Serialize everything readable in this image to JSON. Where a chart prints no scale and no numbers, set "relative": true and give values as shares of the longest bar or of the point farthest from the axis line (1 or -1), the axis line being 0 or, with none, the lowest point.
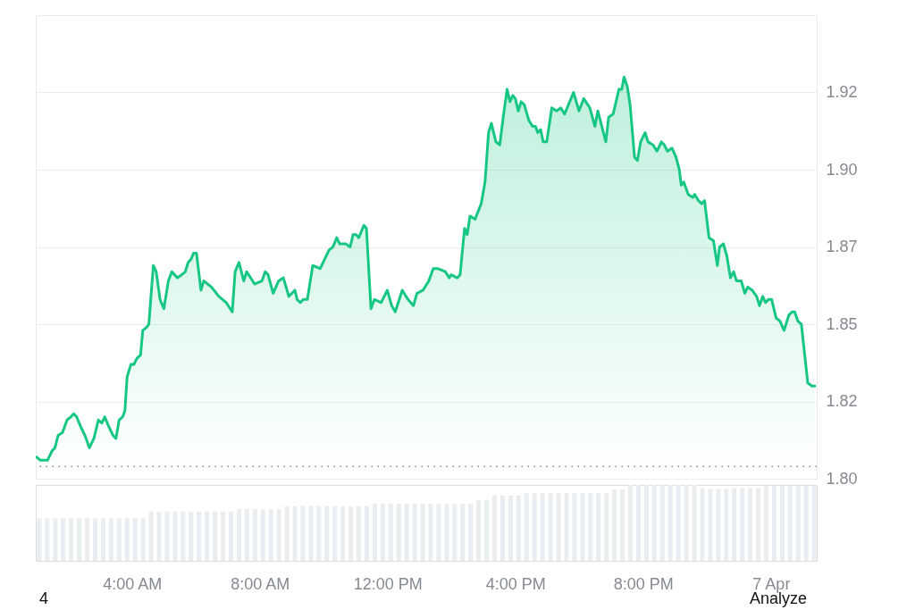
{
  "chart_data": [
    {
      "type": "area",
      "xlim": [
        0.99,
        25.43
      ],
      "ylim": [
        1.8,
        1.95
      ],
      "yticks": [
        {
          "value": 1.8,
          "label": "1.80"
        },
        {
          "value": 1.825,
          "label": "1.82"
        },
        {
          "value": 1.85,
          "label": "1.85"
        },
        {
          "value": 1.875,
          "label": "1.87"
        },
        {
          "value": 1.9,
          "label": "1.90"
        },
        {
          "value": 1.925,
          "label": "1.92"
        }
      ],
      "grid": "y",
      "tick_labels": "y",
      "ref_lines": [
        {
          "axis": "y",
          "value": 1.804,
          "color": "#8c8c8c",
          "line_style": "dotted"
        }
      ],
      "series": [
        {
          "color": "#16c784",
          "x": [
            1.02,
            1.13,
            1.27,
            1.36,
            1.5,
            1.59,
            1.69,
            1.83,
            1.97,
            2.09,
            2.18,
            2.27,
            2.39,
            2.53,
            2.67,
            2.81,
            2.95,
            3.06,
            3.15,
            3.27,
            3.41,
            3.5,
            3.6,
            3.71,
            3.78,
            3.85,
            3.97,
            4.06,
            4.16,
            4.27,
            4.34,
            4.46,
            4.53,
            4.67,
            4.76,
            4.88,
            5.0,
            5.14,
            5.25,
            5.42,
            5.56,
            5.67,
            5.76,
            5.85,
            5.93,
            6.02,
            6.16,
            6.25,
            6.49,
            6.72,
            6.95,
            7.14,
            7.23,
            7.35,
            7.5,
            7.59,
            7.84,
            8.07,
            8.17,
            8.26,
            8.42,
            8.59,
            8.74,
            8.91,
            9.1,
            9.17,
            9.27,
            9.36,
            9.49,
            9.66,
            9.89,
            10.03,
            10.17,
            10.29,
            10.41,
            10.5,
            10.69,
            10.83,
            10.92,
            11.01,
            11.1,
            11.26,
            11.34,
            11.48,
            11.59,
            11.8,
            11.99,
            12.13,
            12.24,
            12.46,
            12.64,
            12.81,
            12.92,
            13.11,
            13.29,
            13.43,
            13.57,
            13.81,
            13.93,
            13.99,
            14.18,
            14.27,
            14.41,
            14.49,
            14.58,
            14.74,
            14.93,
            15.05,
            15.16,
            15.25,
            15.39,
            15.51,
            15.62,
            15.74,
            15.83,
            15.92,
            16.0,
            16.09,
            16.18,
            16.28,
            16.42,
            16.54,
            16.63,
            16.7,
            16.79,
            16.87,
            16.98,
            17.14,
            17.29,
            17.42,
            17.54,
            17.82,
            17.99,
            18.14,
            18.33,
            18.49,
            18.58,
            18.83,
            18.92,
            19.06,
            19.24,
            19.33,
            19.4,
            19.5,
            19.59,
            19.73,
            19.82,
            19.92,
            20.06,
            20.15,
            20.31,
            20.43,
            20.57,
            20.66,
            20.76,
            20.9,
            21.03,
            21.13,
            21.19,
            21.27,
            21.41,
            21.55,
            21.61,
            21.73,
            21.83,
            21.92,
            22.06,
            22.2,
            22.32,
            22.39,
            22.51,
            22.62,
            22.73,
            22.83,
            22.92,
            23.07,
            23.18,
            23.27,
            23.41,
            23.55,
            23.64,
            23.74,
            23.83,
            23.92,
            24.02,
            24.16,
            24.28,
            24.41,
            24.56,
            24.67,
            24.74,
            24.84,
            24.95,
            25.15,
            25.28,
            25.37
          ],
          "values": [
            1.807,
            1.806,
            1.806,
            1.806,
            1.809,
            1.81,
            1.814,
            1.815,
            1.819,
            1.82,
            1.821,
            1.82,
            1.817,
            1.814,
            1.81,
            1.813,
            1.819,
            1.818,
            1.82,
            1.817,
            1.814,
            1.813,
            1.819,
            1.82,
            1.822,
            1.833,
            1.837,
            1.837,
            1.839,
            1.84,
            1.848,
            1.849,
            1.85,
            1.869,
            1.867,
            1.858,
            1.855,
            1.864,
            1.867,
            1.865,
            1.866,
            1.867,
            1.87,
            1.871,
            1.873,
            1.873,
            1.861,
            1.864,
            1.862,
            1.859,
            1.857,
            1.854,
            1.867,
            1.87,
            1.864,
            1.867,
            1.863,
            1.864,
            1.867,
            1.866,
            1.86,
            1.864,
            1.865,
            1.859,
            1.861,
            1.858,
            1.857,
            1.858,
            1.858,
            1.869,
            1.868,
            1.871,
            1.874,
            1.875,
            1.878,
            1.876,
            1.876,
            1.875,
            1.879,
            1.879,
            1.878,
            1.882,
            1.881,
            1.855,
            1.858,
            1.857,
            1.861,
            1.856,
            1.854,
            1.861,
            1.858,
            1.856,
            1.86,
            1.861,
            1.864,
            1.868,
            1.868,
            1.867,
            1.865,
            1.866,
            1.865,
            1.866,
            1.881,
            1.879,
            1.885,
            1.884,
            1.889,
            1.896,
            1.912,
            1.915,
            1.909,
            1.908,
            1.917,
            1.926,
            1.922,
            1.924,
            1.923,
            1.919,
            1.922,
            1.921,
            1.916,
            1.914,
            1.914,
            1.912,
            1.913,
            1.909,
            1.909,
            1.92,
            1.919,
            1.92,
            1.918,
            1.925,
            1.919,
            1.923,
            1.92,
            1.914,
            1.919,
            1.909,
            1.917,
            1.918,
            1.926,
            1.926,
            1.93,
            1.927,
            1.921,
            1.904,
            1.903,
            1.909,
            1.912,
            1.909,
            1.908,
            1.906,
            1.909,
            1.908,
            1.906,
            1.907,
            1.904,
            1.9,
            1.895,
            1.896,
            1.892,
            1.891,
            1.892,
            1.89,
            1.889,
            1.89,
            1.878,
            1.877,
            1.869,
            1.875,
            1.876,
            1.872,
            1.865,
            1.867,
            1.864,
            1.864,
            1.86,
            1.862,
            1.861,
            1.859,
            1.856,
            1.859,
            1.857,
            1.858,
            1.858,
            1.852,
            1.851,
            1.848,
            1.853,
            1.854,
            1.854,
            1.851,
            1.85,
            1.831,
            1.83,
            1.83
          ]
        }
      ]
    },
    {
      "type": "bar",
      "relative": true,
      "xlim": [
        0.99,
        25.43
      ],
      "xticks": [
        {
          "value": 4,
          "label": "4:00 AM"
        },
        {
          "value": 8,
          "label": "8:00 AM"
        },
        {
          "value": 12,
          "label": "12:00 PM"
        },
        {
          "value": 16,
          "label": "4:00 PM"
        },
        {
          "value": 20,
          "label": "8:00 PM"
        },
        {
          "value": 24,
          "label": "7 Apr"
        }
      ],
      "tick_labels": "x",
      "x": [
        1.1,
        1.35,
        1.6,
        1.85,
        2.1,
        2.35,
        2.6,
        2.85,
        3.1,
        3.35,
        3.6,
        3.85,
        4.1,
        4.35,
        4.6,
        4.85,
        5.1,
        5.35,
        5.6,
        5.85,
        6.1,
        6.35,
        6.6,
        6.85,
        7.1,
        7.35,
        7.6,
        7.85,
        8.1,
        8.35,
        8.6,
        8.85,
        9.1,
        9.35,
        9.6,
        9.85,
        10.1,
        10.35,
        10.6,
        10.85,
        11.1,
        11.35,
        11.6,
        11.85,
        12.1,
        12.35,
        12.6,
        12.85,
        13.1,
        13.35,
        13.6,
        13.85,
        14.1,
        14.35,
        14.6,
        14.85,
        15.1,
        15.35,
        15.6,
        15.85,
        16.1,
        16.35,
        16.6,
        16.85,
        17.1,
        17.35,
        17.6,
        17.85,
        18.1,
        18.35,
        18.6,
        18.85,
        19.1,
        19.35,
        19.6,
        19.85,
        20.1,
        20.35,
        20.6,
        20.85,
        21.1,
        21.35,
        21.6,
        21.85,
        22.1,
        22.35,
        22.6,
        22.85,
        23.1,
        23.35,
        23.6,
        23.85,
        24.1,
        24.35,
        24.6,
        24.85,
        25.1,
        25.35
      ],
      "series": [
        {
          "color": "#e9edf0",
          "values": [
            0.56,
            0.56,
            0.56,
            0.56,
            0.56,
            0.56,
            0.56,
            0.56,
            0.56,
            0.56,
            0.56,
            0.56,
            0.56,
            0.56,
            0.65,
            0.65,
            0.65,
            0.65,
            0.65,
            0.65,
            0.65,
            0.65,
            0.65,
            0.65,
            0.65,
            0.68,
            0.68,
            0.68,
            0.68,
            0.68,
            0.68,
            0.72,
            0.72,
            0.72,
            0.72,
            0.72,
            0.72,
            0.72,
            0.72,
            0.72,
            0.72,
            0.72,
            0.75,
            0.75,
            0.75,
            0.75,
            0.75,
            0.75,
            0.75,
            0.75,
            0.75,
            0.75,
            0.75,
            0.75,
            0.75,
            0.8,
            0.8,
            0.86,
            0.86,
            0.86,
            0.86,
            0.89,
            0.89,
            0.89,
            0.89,
            0.89,
            0.89,
            0.89,
            0.89,
            0.89,
            0.89,
            0.89,
            0.94,
            0.94,
            1.0,
            1.0,
            1.0,
            1.0,
            1.0,
            1.0,
            1.0,
            1.0,
            1.0,
            0.95,
            0.95,
            0.95,
            0.95,
            0.96,
            0.96,
            0.96,
            0.96,
            0.99,
            0.99,
            0.99,
            0.99,
            0.99,
            0.99,
            0.99
          ]
        }
      ],
      "annotations": [
        "4",
        "Analyze"
      ]
    }
  ]
}
